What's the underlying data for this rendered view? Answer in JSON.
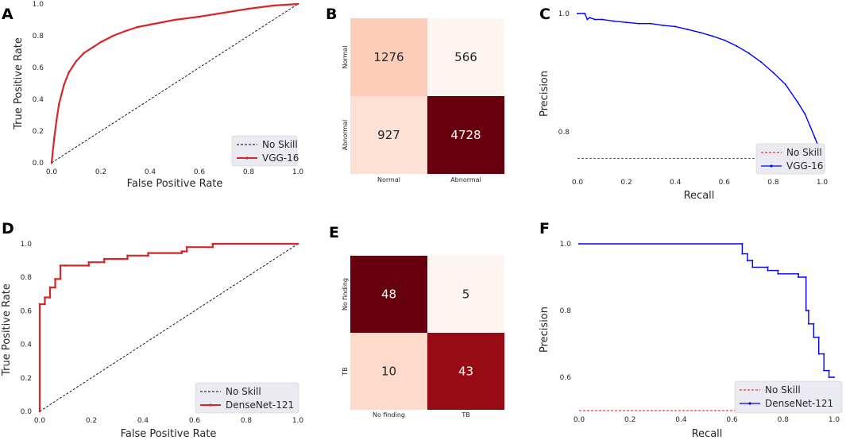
{
  "colors": {
    "roc": "#d62728",
    "pr": "#0000ff",
    "noskill_roc": "#000000",
    "noskill_pr": "#ff0000",
    "legend_bg": "#eaeaf2"
  },
  "chart_data": [
    {
      "panel": "A",
      "type": "line",
      "xlabel": "False Positive Rate",
      "ylabel": "True Positive Rate",
      "xlim": [
        0,
        1
      ],
      "ylim": [
        0,
        1
      ],
      "xticks": [
        "0.0",
        "0.2",
        "0.4",
        "0.6",
        "0.8",
        "1.0"
      ],
      "yticks": [
        "0.0",
        "0.2",
        "0.4",
        "0.6",
        "0.8",
        "1.0"
      ],
      "legend": [
        "No Skill",
        "VGG-16"
      ],
      "legend_position": "lower-right",
      "series": [
        {
          "name": "No Skill",
          "x": [
            0,
            1
          ],
          "y": [
            0,
            1
          ]
        },
        {
          "name": "VGG-16",
          "x": [
            0,
            0.01,
            0.02,
            0.03,
            0.05,
            0.07,
            0.1,
            0.13,
            0.17,
            0.2,
            0.25,
            0.3,
            0.35,
            0.4,
            0.5,
            0.6,
            0.7,
            0.8,
            0.9,
            1.0
          ],
          "y": [
            0,
            0.15,
            0.27,
            0.37,
            0.49,
            0.57,
            0.64,
            0.69,
            0.73,
            0.76,
            0.8,
            0.83,
            0.855,
            0.87,
            0.9,
            0.92,
            0.945,
            0.97,
            0.99,
            1.0
          ]
        }
      ]
    },
    {
      "panel": "B",
      "type": "heatmap",
      "row_labels": [
        "Normal",
        "Abnormal"
      ],
      "col_labels": [
        "Normal",
        "Abnormal"
      ],
      "values": [
        [
          1276,
          566
        ],
        [
          927,
          4728
        ]
      ]
    },
    {
      "panel": "C",
      "type": "line",
      "xlabel": "Recall",
      "ylabel": "Precision",
      "xlim": [
        0,
        1
      ],
      "ylim": [
        0.73,
        1.0
      ],
      "xticks": [
        "0.0",
        "0.2",
        "0.4",
        "0.6",
        "0.8",
        "1.0"
      ],
      "yticks": [
        "0.8",
        "1.0"
      ],
      "ytick_values": [
        0.8,
        1.0
      ],
      "legend": [
        "No Skill",
        "VGG-16"
      ],
      "legend_position": "lower-right",
      "series": [
        {
          "name": "No Skill",
          "x": [
            0,
            1
          ],
          "y": [
            0.755,
            0.755
          ]
        },
        {
          "name": "VGG-16",
          "x": [
            0,
            0.03,
            0.04,
            0.05,
            0.07,
            0.1,
            0.15,
            0.2,
            0.25,
            0.3,
            0.35,
            0.4,
            0.45,
            0.5,
            0.55,
            0.6,
            0.65,
            0.7,
            0.75,
            0.8,
            0.85,
            0.9,
            0.93,
            0.95,
            0.97,
            0.99
          ],
          "y": [
            1.0,
            1.0,
            0.99,
            0.993,
            0.99,
            0.99,
            0.987,
            0.985,
            0.983,
            0.983,
            0.98,
            0.978,
            0.973,
            0.968,
            0.962,
            0.955,
            0.945,
            0.933,
            0.918,
            0.9,
            0.88,
            0.85,
            0.83,
            0.81,
            0.79,
            0.77
          ]
        }
      ]
    },
    {
      "panel": "D",
      "type": "line",
      "xlabel": "False Positive Rate",
      "ylabel": "True Positive Rate",
      "xlim": [
        0,
        1
      ],
      "ylim": [
        0,
        1
      ],
      "xticks": [
        "0.0",
        "0.2",
        "0.4",
        "0.6",
        "0.8",
        "1.0"
      ],
      "yticks": [
        "0.0",
        "0.2",
        "0.4",
        "0.6",
        "0.8",
        "1.0"
      ],
      "legend": [
        "No Skill",
        "DenseNet-121"
      ],
      "legend_position": "lower-right",
      "series": [
        {
          "name": "No Skill",
          "x": [
            0,
            1
          ],
          "y": [
            0,
            1
          ]
        },
        {
          "name": "DenseNet-121",
          "x": [
            0,
            0,
            0.02,
            0.02,
            0.04,
            0.04,
            0.06,
            0.06,
            0.08,
            0.08,
            0.1,
            0.1,
            0.19,
            0.19,
            0.25,
            0.25,
            0.34,
            0.34,
            0.42,
            0.42,
            0.55,
            0.55,
            0.57,
            0.57,
            0.67,
            0.67,
            1.0
          ],
          "y": [
            0,
            0.64,
            0.64,
            0.68,
            0.68,
            0.74,
            0.74,
            0.79,
            0.79,
            0.87,
            0.87,
            0.87,
            0.87,
            0.89,
            0.89,
            0.91,
            0.91,
            0.93,
            0.93,
            0.945,
            0.945,
            0.955,
            0.955,
            0.98,
            0.98,
            1.0,
            1.0
          ]
        }
      ]
    },
    {
      "panel": "E",
      "type": "heatmap",
      "row_labels": [
        "No finding",
        "TB"
      ],
      "col_labels": [
        "No finding",
        "TB"
      ],
      "values": [
        [
          48,
          5
        ],
        [
          10,
          43
        ]
      ]
    },
    {
      "panel": "F",
      "type": "line",
      "xlabel": "Recall",
      "ylabel": "Precision",
      "xlim": [
        0,
        1
      ],
      "ylim": [
        0.5,
        1.0
      ],
      "xticks": [
        "0.0",
        "0.2",
        "0.4",
        "0.6",
        "0.8",
        "1.0"
      ],
      "yticks": [
        "0.6",
        "0.8",
        "1.0"
      ],
      "ytick_values": [
        0.6,
        0.8,
        1.0
      ],
      "legend": [
        "No Skill",
        "DenseNet-121"
      ],
      "legend_position": "lower-right",
      "series": [
        {
          "name": "No Skill",
          "x": [
            0,
            1
          ],
          "y": [
            0.5,
            0.5
          ]
        },
        {
          "name": "DenseNet-121",
          "x": [
            0,
            0.64,
            0.64,
            0.66,
            0.66,
            0.68,
            0.68,
            0.74,
            0.74,
            0.78,
            0.78,
            0.86,
            0.86,
            0.89,
            0.89,
            0.9,
            0.9,
            0.92,
            0.92,
            0.94,
            0.94,
            0.96,
            0.96,
            0.98,
            0.98,
            1.0
          ],
          "y": [
            1.0,
            1.0,
            0.97,
            0.97,
            0.95,
            0.95,
            0.93,
            0.93,
            0.92,
            0.92,
            0.91,
            0.91,
            0.9,
            0.9,
            0.8,
            0.8,
            0.76,
            0.76,
            0.72,
            0.72,
            0.67,
            0.67,
            0.62,
            0.62,
            0.6,
            0.6
          ]
        }
      ]
    }
  ]
}
